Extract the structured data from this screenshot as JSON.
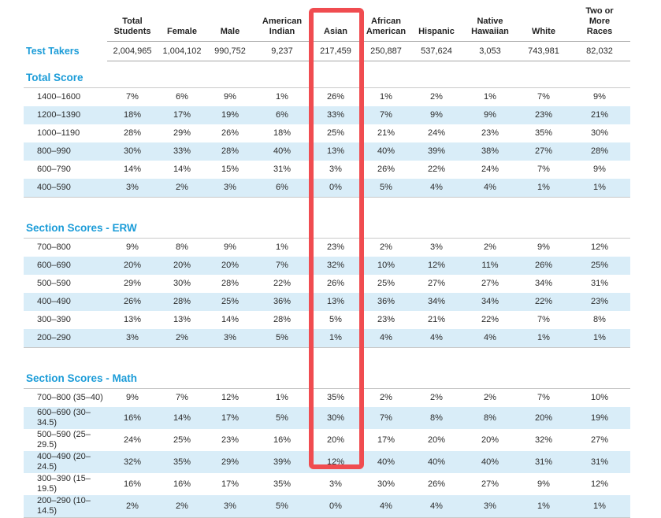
{
  "colors": {
    "heading_blue": "#1b9cd8",
    "stripe_blue": "#d9edf8",
    "highlight_red": "#f04c50",
    "text": "#2b2b2b"
  },
  "table": {
    "columns": [
      "Total\nStudents",
      "Female",
      "Male",
      "American\nIndian",
      "Asian",
      "African\nAmerican",
      "Hispanic",
      "Native\nHawaiian",
      "White",
      "Two or\nMore\nRaces"
    ],
    "test_takers": {
      "label": "Test Takers",
      "values": [
        "2,004,965",
        "1,004,102",
        "990,752",
        "9,237",
        "217,459",
        "250,887",
        "537,624",
        "3,053",
        "743,981",
        "82,032"
      ]
    },
    "sections": [
      {
        "title": "Total Score",
        "rows": [
          {
            "label": "1400–1600",
            "values": [
              "7%",
              "6%",
              "9%",
              "1%",
              "26%",
              "1%",
              "2%",
              "1%",
              "7%",
              "9%"
            ]
          },
          {
            "label": "1200–1390",
            "values": [
              "18%",
              "17%",
              "19%",
              "6%",
              "33%",
              "7%",
              "9%",
              "9%",
              "23%",
              "21%"
            ]
          },
          {
            "label": "1000–1190",
            "values": [
              "28%",
              "29%",
              "26%",
              "18%",
              "25%",
              "21%",
              "24%",
              "23%",
              "35%",
              "30%"
            ]
          },
          {
            "label": "800–990",
            "values": [
              "30%",
              "33%",
              "28%",
              "40%",
              "13%",
              "40%",
              "39%",
              "38%",
              "27%",
              "28%"
            ]
          },
          {
            "label": "600–790",
            "values": [
              "14%",
              "14%",
              "15%",
              "31%",
              "3%",
              "26%",
              "22%",
              "24%",
              "7%",
              "9%"
            ]
          },
          {
            "label": "400–590",
            "values": [
              "3%",
              "2%",
              "3%",
              "6%",
              "0%",
              "5%",
              "4%",
              "4%",
              "1%",
              "1%"
            ]
          }
        ]
      },
      {
        "title": "Section Scores - ERW",
        "rows": [
          {
            "label": "700–800",
            "values": [
              "9%",
              "8%",
              "9%",
              "1%",
              "23%",
              "2%",
              "3%",
              "2%",
              "9%",
              "12%"
            ]
          },
          {
            "label": "600–690",
            "values": [
              "20%",
              "20%",
              "20%",
              "7%",
              "32%",
              "10%",
              "12%",
              "11%",
              "26%",
              "25%"
            ]
          },
          {
            "label": "500–590",
            "values": [
              "29%",
              "30%",
              "28%",
              "22%",
              "26%",
              "25%",
              "27%",
              "27%",
              "34%",
              "31%"
            ]
          },
          {
            "label": "400–490",
            "values": [
              "26%",
              "28%",
              "25%",
              "36%",
              "13%",
              "36%",
              "34%",
              "34%",
              "22%",
              "23%"
            ]
          },
          {
            "label": "300–390",
            "values": [
              "13%",
              "13%",
              "14%",
              "28%",
              "5%",
              "23%",
              "21%",
              "22%",
              "7%",
              "8%"
            ]
          },
          {
            "label": "200–290",
            "values": [
              "3%",
              "2%",
              "3%",
              "5%",
              "1%",
              "4%",
              "4%",
              "4%",
              "1%",
              "1%"
            ]
          }
        ]
      },
      {
        "title": "Section Scores - Math",
        "rows": [
          {
            "label": "700–800 (35–40)",
            "values": [
              "9%",
              "7%",
              "12%",
              "1%",
              "35%",
              "2%",
              "2%",
              "2%",
              "7%",
              "10%"
            ]
          },
          {
            "label": "600–690 (30–34.5)",
            "values": [
              "16%",
              "14%",
              "17%",
              "5%",
              "30%",
              "7%",
              "8%",
              "8%",
              "20%",
              "19%"
            ]
          },
          {
            "label": "500–590 (25–29.5)",
            "values": [
              "24%",
              "25%",
              "23%",
              "16%",
              "20%",
              "17%",
              "20%",
              "20%",
              "32%",
              "27%"
            ]
          },
          {
            "label": "400–490 (20–24.5)",
            "values": [
              "32%",
              "35%",
              "29%",
              "39%",
              "12%",
              "40%",
              "40%",
              "40%",
              "31%",
              "31%"
            ]
          },
          {
            "label": "300–390 (15–19.5)",
            "values": [
              "16%",
              "16%",
              "17%",
              "35%",
              "3%",
              "30%",
              "26%",
              "27%",
              "9%",
              "12%"
            ]
          },
          {
            "label": "200–290 (10–14.5)",
            "values": [
              "2%",
              "2%",
              "3%",
              "5%",
              "0%",
              "4%",
              "4%",
              "3%",
              "1%",
              "1%"
            ]
          }
        ]
      }
    ],
    "highlight": {
      "column": "Asian",
      "color": "#f04c50"
    }
  }
}
